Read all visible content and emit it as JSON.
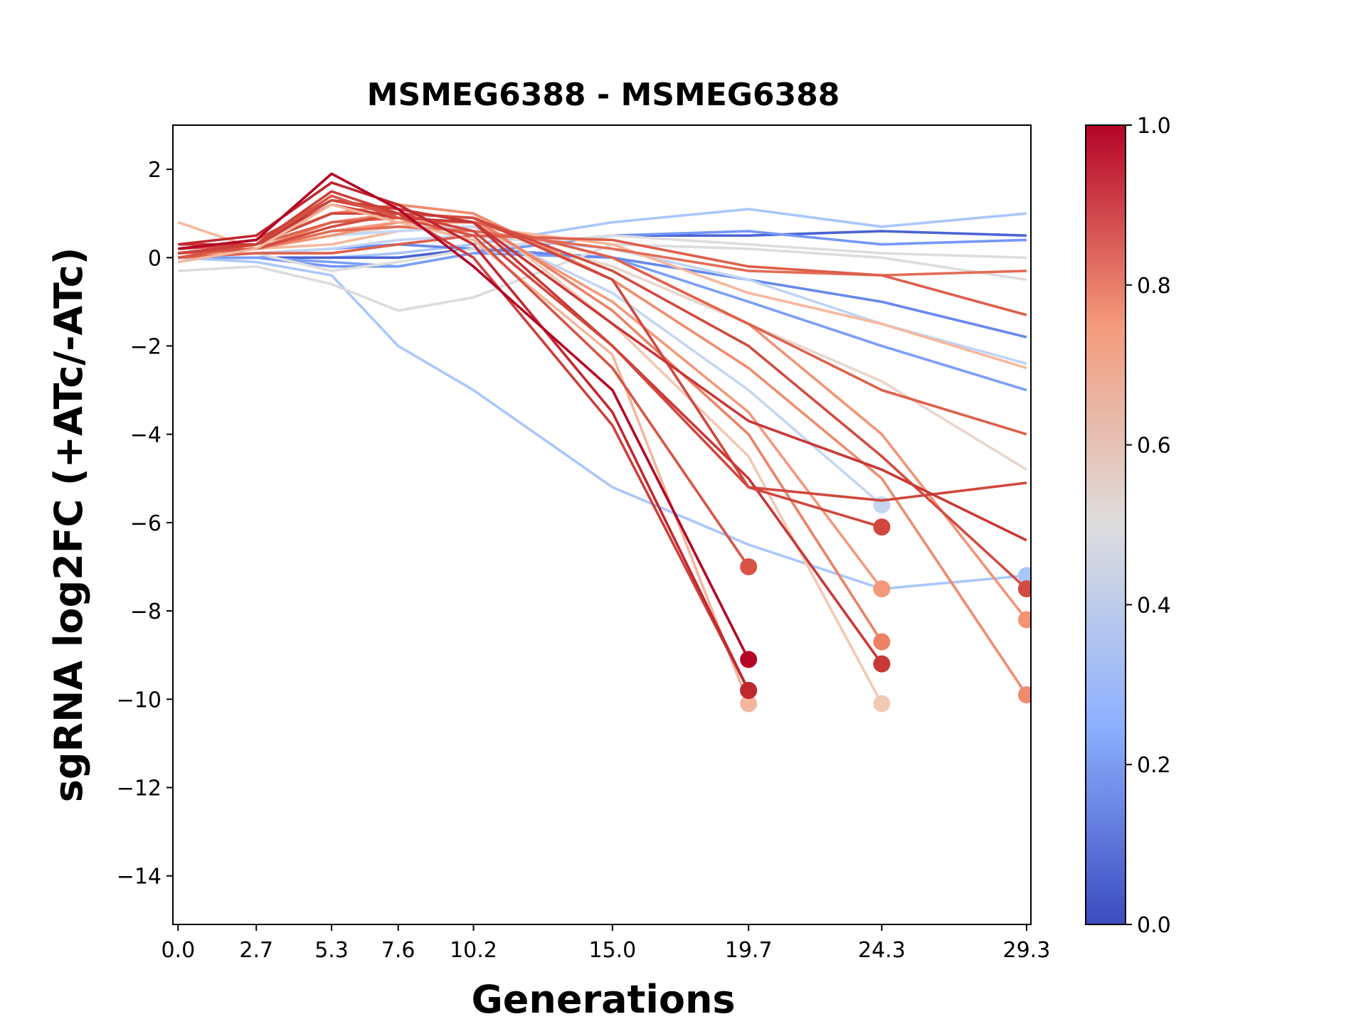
{
  "chart_data": {
    "type": "line",
    "title": "MSMEG6388 - MSMEG6388",
    "xlabel": "Generations",
    "ylabel": "sgRNA log2FC (+ATc/-ATc)",
    "x": [
      0,
      2.7,
      5.3,
      7.6,
      10.2,
      15,
      19.7,
      24.3,
      29.3
    ],
    "xlim": [
      -0.18,
      29.45
    ],
    "xticks": [
      {
        "value": 0,
        "label": "0.0"
      },
      2.7,
      5.3,
      7.6,
      10.2,
      {
        "value": 15,
        "label": "15.0"
      },
      19.7,
      24.3,
      29.3
    ],
    "ylim": [
      -15.1,
      3
    ],
    "yticks": [
      {
        "value": -14,
        "label": "−14"
      },
      {
        "value": -12,
        "label": "−12"
      },
      {
        "value": -10,
        "label": "−10"
      },
      {
        "value": -8,
        "label": "−8"
      },
      {
        "value": -6,
        "label": "−6"
      },
      {
        "value": -4,
        "label": "−4"
      },
      {
        "value": -2,
        "label": "−2"
      },
      0,
      2
    ],
    "grid": false,
    "colorbar": {
      "ticks": [
        {
          "value": 0,
          "label": "0.0"
        },
        {
          "value": 0.2,
          "label": "0.2"
        },
        {
          "value": 0.4,
          "label": "0.4"
        },
        {
          "value": 0.6,
          "label": "0.6"
        },
        {
          "value": 0.8,
          "label": "0.8"
        },
        {
          "value": 1,
          "label": "1.0"
        }
      ],
      "lim": [
        0,
        1
      ],
      "colormap": [
        {
          "offset": 0,
          "color": "#3b4cc0"
        },
        {
          "offset": 0.25,
          "color": "#8db0fe"
        },
        {
          "offset": 0.5,
          "color": "#dddddd"
        },
        {
          "offset": 0.75,
          "color": "#f49a7b"
        },
        {
          "offset": 1,
          "color": "#b40426"
        }
      ]
    },
    "series": [
      {
        "color": "#a9c6fd",
        "marker": false,
        "values": [
          0,
          0,
          0,
          0.1,
          0.3,
          0.8,
          1.1,
          0.7,
          1.0
        ]
      },
      {
        "color": "#4a63d3",
        "marker": false,
        "values": [
          0,
          0,
          0,
          0,
          0.2,
          0.5,
          0.5,
          0.6,
          0.5
        ]
      },
      {
        "color": "#7597f6",
        "marker": false,
        "values": [
          0,
          0,
          -0.2,
          -0.2,
          0.1,
          0.5,
          0.6,
          0.3,
          0.4
        ]
      },
      {
        "color": "#7b9ff9",
        "marker": false,
        "values": [
          0,
          0,
          -0.1,
          -0.2,
          0.1,
          0,
          -1,
          -2,
          -3
        ]
      },
      {
        "color": "#6788ee",
        "marker": false,
        "values": [
          0,
          0.1,
          0.2,
          0.3,
          0.2,
          0,
          -0.5,
          -1,
          -1.8
        ]
      },
      {
        "color": "#c0d4f5",
        "marker": false,
        "values": [
          0,
          0.1,
          0.2,
          0.4,
          0.5,
          0.2,
          -0.5,
          -1.5,
          -2.4
        ]
      },
      {
        "color": "#aac7fd",
        "marker": true,
        "values": [
          0,
          -0.1,
          -0.4,
          -2,
          -3,
          -5.2,
          -6.5,
          -7.5,
          -7.2
        ]
      },
      {
        "color": "#dcdddd",
        "marker": false,
        "values": [
          0,
          0.1,
          -0.3,
          -0.1,
          0.2,
          0.5,
          0.3,
          0.1,
          0
        ]
      },
      {
        "color": "#dddcdc",
        "marker": false,
        "values": [
          -0.3,
          -0.2,
          -0.6,
          -1.2,
          -0.9,
          0.3,
          0.2,
          0,
          -0.5
        ]
      },
      {
        "color": "#e8d6cc",
        "marker": false,
        "values": [
          0.1,
          0.2,
          0.5,
          0.7,
          0.7,
          -0.2,
          -1.5,
          -2.8,
          -4.8
        ]
      },
      {
        "color": "#f7b89c",
        "marker": false,
        "values": [
          0.8,
          0.2,
          0.3,
          0.6,
          0.7,
          0.3,
          -0.8,
          -1.5,
          -2.5
        ]
      },
      {
        "color": "#c5d6f2",
        "marker": true,
        "values": [
          0,
          0.2,
          0.5,
          0.6,
          0.7,
          -0.8,
          -3,
          -5.6,
          null
        ]
      },
      {
        "color": "#f2c9b4",
        "marker": true,
        "values": [
          0.2,
          0.4,
          1.0,
          1.2,
          1.0,
          -1.5,
          -4.5,
          -10.1,
          null
        ]
      },
      {
        "color": "#f4987a",
        "marker": true,
        "values": [
          0.1,
          0.2,
          0.6,
          0.8,
          0.8,
          -1.0,
          -3.5,
          -7.5,
          null
        ]
      },
      {
        "color": "#ec8165",
        "marker": true,
        "values": [
          0,
          0.2,
          0.8,
          1.0,
          0.9,
          -1.2,
          -4,
          -8.7,
          null
        ]
      },
      {
        "color": "#f39475",
        "marker": true,
        "values": [
          0,
          0.2,
          0.5,
          0.8,
          0.8,
          0,
          -1.5,
          -4,
          -8.2
        ]
      },
      {
        "color": "#f08b6e",
        "marker": true,
        "values": [
          0.2,
          0.3,
          1.0,
          1.2,
          1.0,
          -0.5,
          -2.5,
          -5,
          -9.9
        ]
      },
      {
        "color": "#de614d",
        "marker": false,
        "values": [
          0.1,
          0.3,
          0.8,
          0.9,
          0.8,
          0,
          -1.5,
          -3,
          -4
        ]
      },
      {
        "color": "#e36c55",
        "marker": false,
        "values": [
          0.1,
          0.2,
          0.6,
          0.7,
          0.6,
          0.2,
          -0.3,
          -0.4,
          -0.3
        ]
      },
      {
        "color": "#dd5f4b",
        "marker": false,
        "values": [
          0,
          0.1,
          0.1,
          0.3,
          0.5,
          0.4,
          -0.2,
          -0.4,
          -1.3
        ]
      },
      {
        "color": "#d0473d",
        "marker": false,
        "values": [
          0.2,
          0.3,
          1.0,
          1.0,
          0.9,
          -0.5,
          -5.2,
          -5.5,
          -5.1
        ]
      },
      {
        "color": "#d24b40",
        "marker": true,
        "values": [
          0.1,
          0.2,
          0.7,
          1.0,
          0.9,
          -0.3,
          -2,
          -4.5,
          -7.5
        ]
      },
      {
        "color": "#c83836",
        "marker": false,
        "values": [
          0.3,
          0.3,
          1.3,
          1.1,
          0.8,
          -1.5,
          -3.7,
          -4.8,
          -6.4
        ]
      },
      {
        "color": "#c83836",
        "marker": true,
        "values": [
          0.1,
          0.3,
          1.2,
          0.9,
          0.8,
          -2,
          -5,
          -9.2,
          null
        ]
      },
      {
        "color": "#d0473d",
        "marker": true,
        "values": [
          0.2,
          0.4,
          1.3,
          1.0,
          0.6,
          -2.0,
          -5.2,
          -6.1,
          null
        ]
      },
      {
        "color": "#f2b79d",
        "marker": true,
        "values": [
          -0.1,
          0.2,
          1.2,
          0.8,
          0.4,
          -2.2,
          -10.1,
          null,
          null
        ]
      },
      {
        "color": "#d75445",
        "marker": true,
        "values": [
          0,
          0.3,
          1.4,
          0.9,
          0.5,
          -2.5,
          -7,
          null,
          null
        ]
      },
      {
        "color": "#cc403a",
        "marker": true,
        "values": [
          0.1,
          0.3,
          1.5,
          1.0,
          0,
          -3.8,
          -9.8,
          null,
          null
        ]
      },
      {
        "color": "#c0282f",
        "marker": true,
        "values": [
          0.3,
          0.5,
          1.7,
          1.2,
          0.3,
          -3.5,
          -9.8,
          null,
          null
        ]
      },
      {
        "color": "#b40426",
        "marker": true,
        "values": [
          0.2,
          0.4,
          1.9,
          1.1,
          -0.2,
          -3,
          -9.1,
          null,
          null
        ]
      }
    ]
  }
}
